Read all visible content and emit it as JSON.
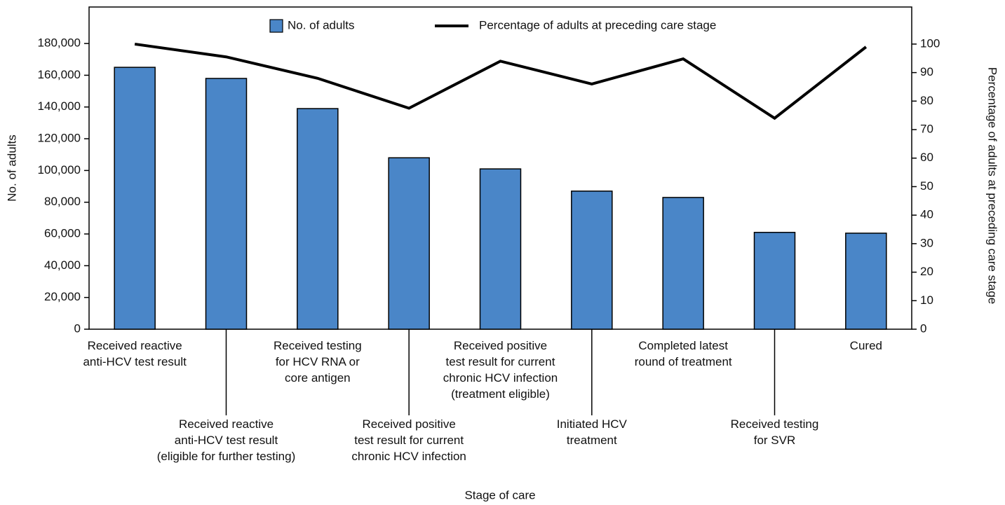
{
  "chart_data": {
    "type": "bar",
    "x_label": "Stage of care",
    "y_label": "No. of adults",
    "y2_label": "Percentage of adults at preceding care stage",
    "categories": [
      "Received reactive\nanti-HCV test result",
      "Received reactive\nanti-HCV test result\n(eligible for further testing)",
      "Received testing\nfor HCV RNA or\ncore antigen",
      "Received positive\ntest result for current\nchronic HCV infection",
      "Received positive\ntest result for current\nchronic HCV infection\n(treatment eligible)",
      "Initiated HCV\ntreatment",
      "Completed latest\nround of treatment",
      "Received testing\nfor SVR",
      "Cured"
    ],
    "series": [
      {
        "name": "No. of adults",
        "type": "bar",
        "color": "#4a86c8",
        "values": [
          165000,
          158000,
          139000,
          108000,
          101000,
          87000,
          83000,
          61000,
          60500
        ]
      },
      {
        "name": "Percentage of adults at preceding care stage",
        "type": "line",
        "color": "#000000",
        "axis": "y2",
        "values": [
          100,
          95.5,
          88,
          77.5,
          94,
          86,
          94.8,
          74,
          99
        ]
      }
    ],
    "ylim": [
      0,
      203000
    ],
    "yticks": [
      0,
      {
        "value": 20000,
        "label": "20,000"
      },
      {
        "value": 40000,
        "label": "40,000"
      },
      {
        "value": 60000,
        "label": "60,000"
      },
      {
        "value": 80000,
        "label": "80,000"
      },
      {
        "value": 100000,
        "label": "100,000"
      },
      {
        "value": 120000,
        "label": "120,000"
      },
      {
        "value": 140000,
        "label": "140,000"
      },
      {
        "value": 160000,
        "label": "160,000"
      },
      {
        "value": 180000,
        "label": "180,000"
      }
    ],
    "y2lim": [
      0,
      113
    ],
    "y2ticks": [
      0,
      10,
      20,
      30,
      40,
      50,
      60,
      70,
      80,
      90,
      100
    ]
  }
}
